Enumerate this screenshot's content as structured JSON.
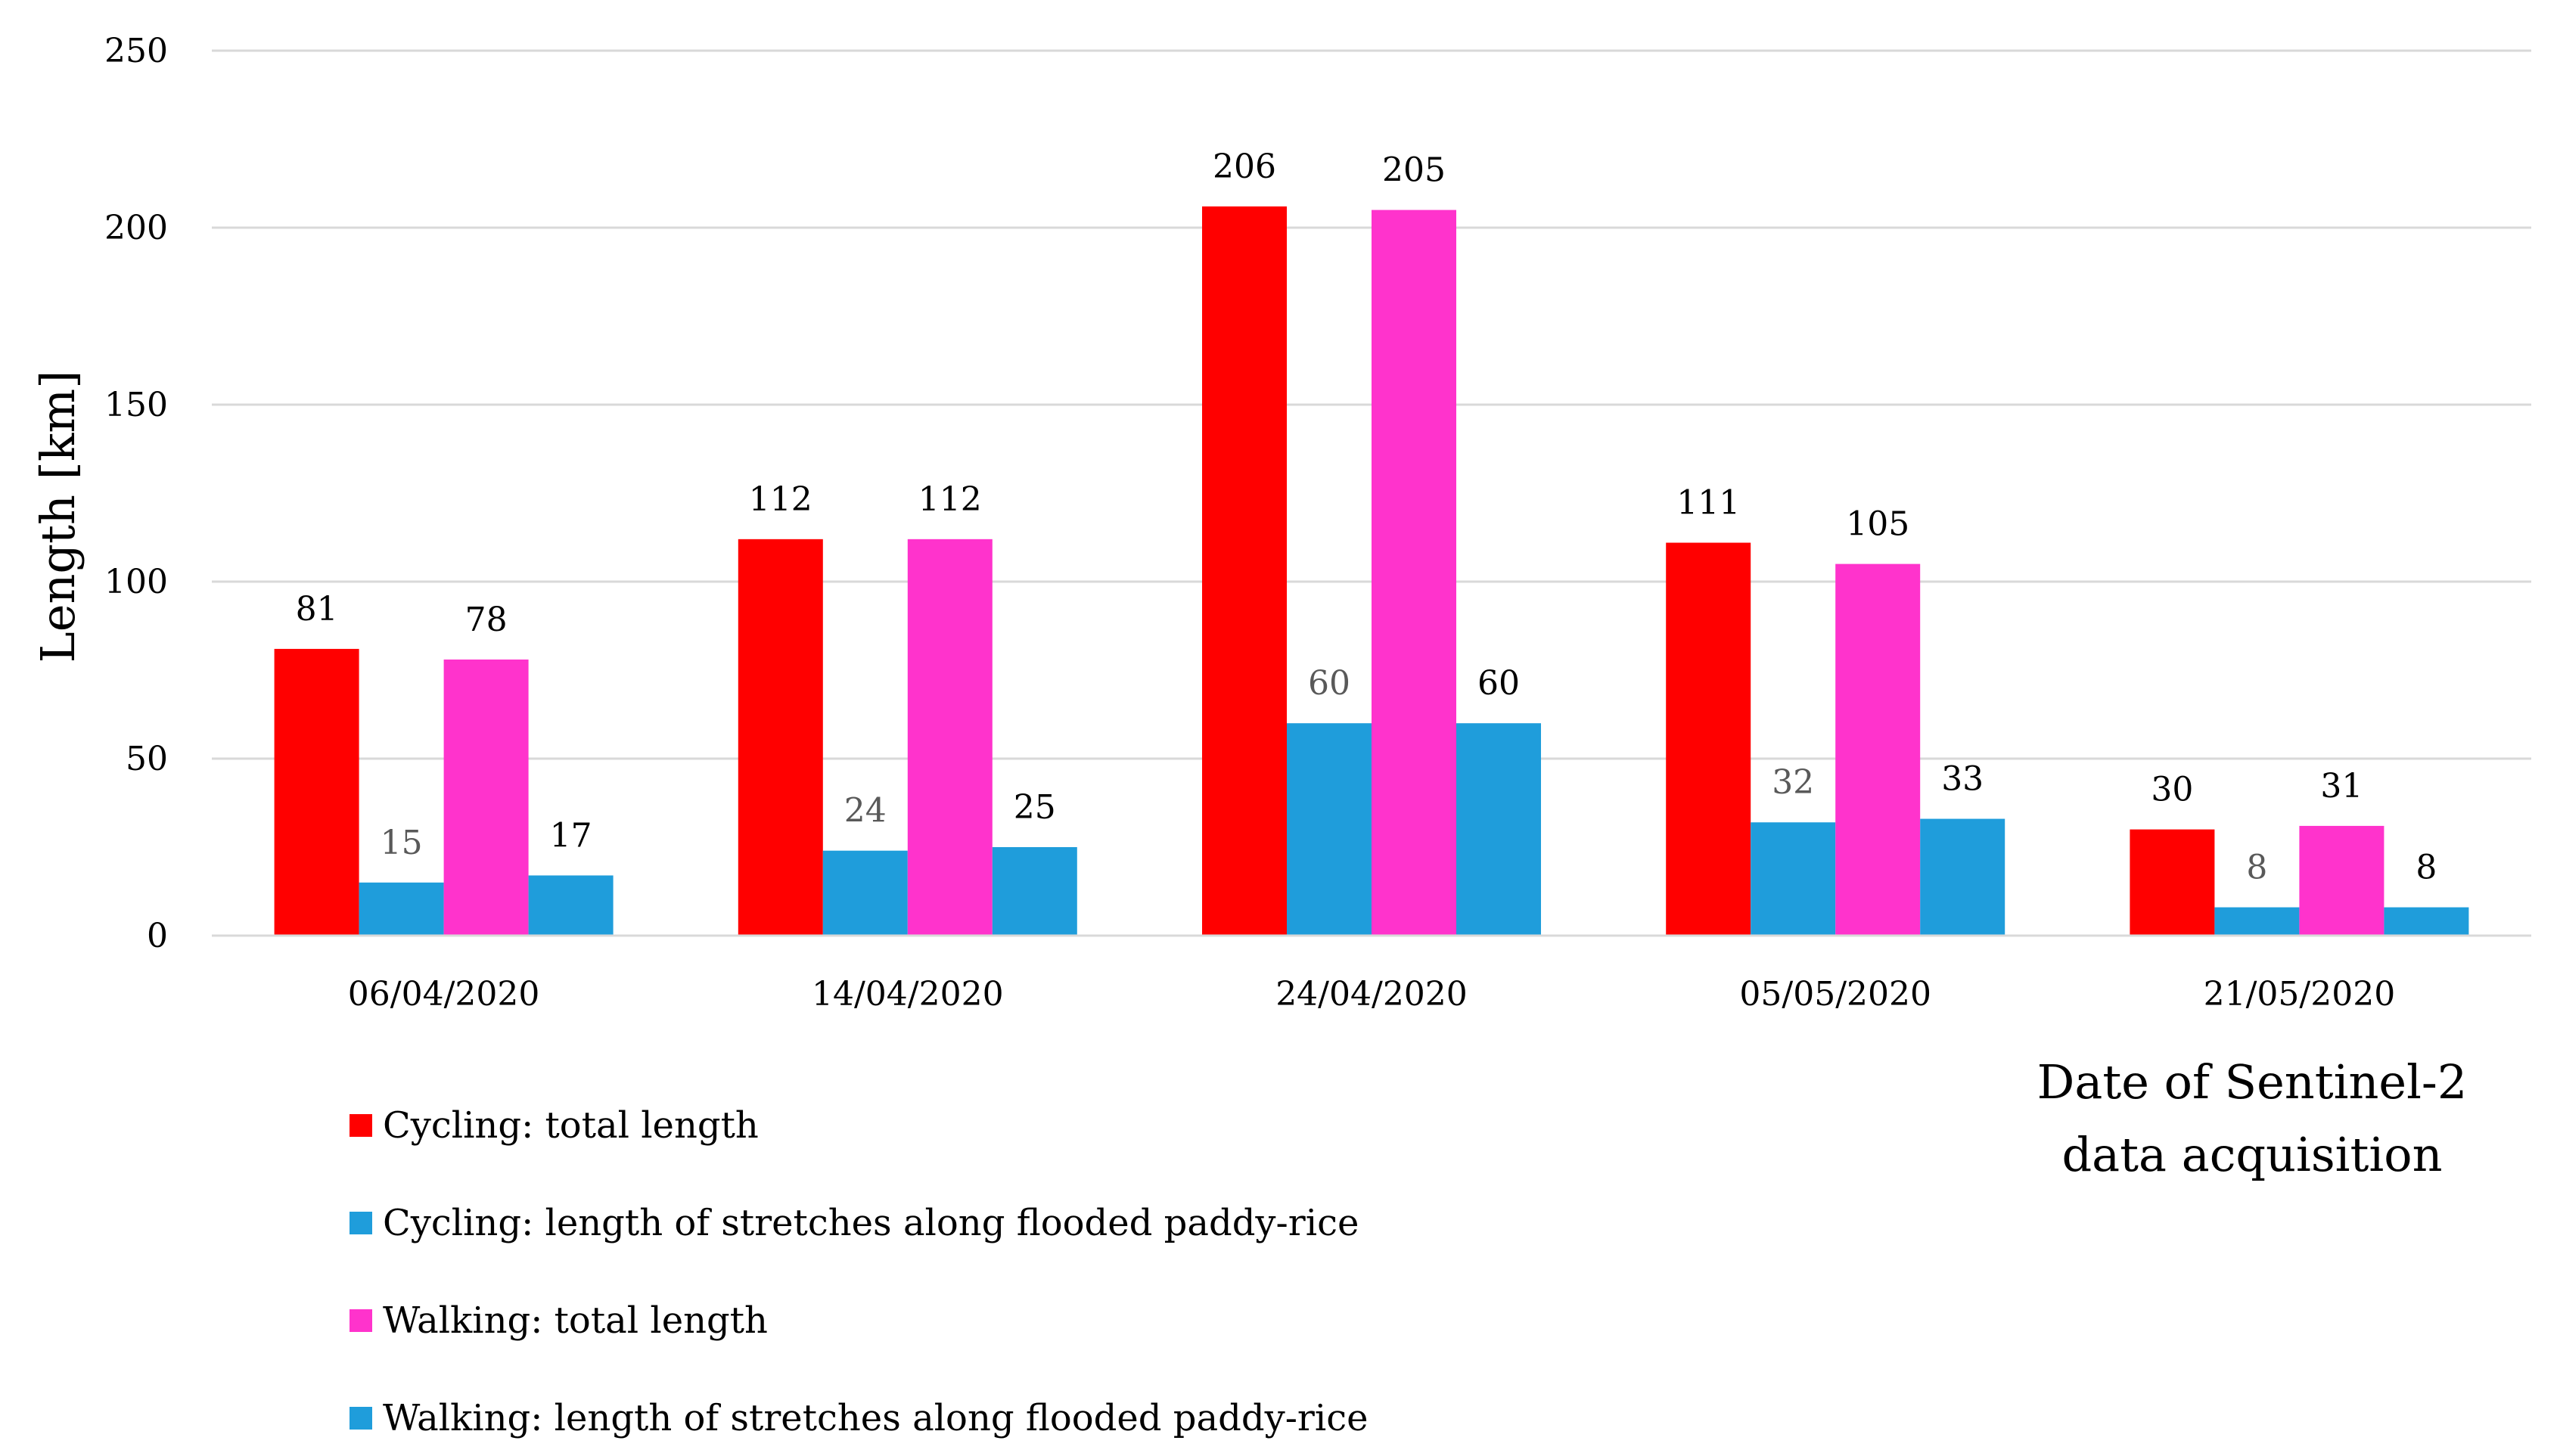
{
  "chart_data": {
    "type": "bar",
    "title": "",
    "xlabel_lines": [
      "Date of Sentinel-2",
      "data acquisition"
    ],
    "ylabel": "Length [km]",
    "ylim": [
      0,
      250
    ],
    "yticks": [
      0,
      50,
      100,
      150,
      200,
      250
    ],
    "grid": true,
    "legend_position": "bottom-left",
    "categories": [
      "06/04/2020",
      "14/04/2020",
      "24/04/2020",
      "05/05/2020",
      "21/05/2020"
    ],
    "series": [
      {
        "name": "Cycling: total length",
        "color": "#ff0000",
        "label_color": "#000000",
        "values": [
          81,
          112,
          206,
          111,
          30
        ]
      },
      {
        "name": "Cycling: length of stretches along flooded paddy-rice",
        "color": "#1f9ddb",
        "label_color": "#595959",
        "values": [
          15,
          24,
          60,
          32,
          8
        ]
      },
      {
        "name": "Walking: total length",
        "color": "#ff33cc",
        "label_color": "#000000",
        "values": [
          78,
          112,
          205,
          105,
          31
        ]
      },
      {
        "name": "Walking: length of stretches along flooded paddy-rice",
        "color": "#1f9ddb",
        "label_color": "#000000",
        "values": [
          17,
          25,
          60,
          33,
          8
        ]
      }
    ]
  }
}
